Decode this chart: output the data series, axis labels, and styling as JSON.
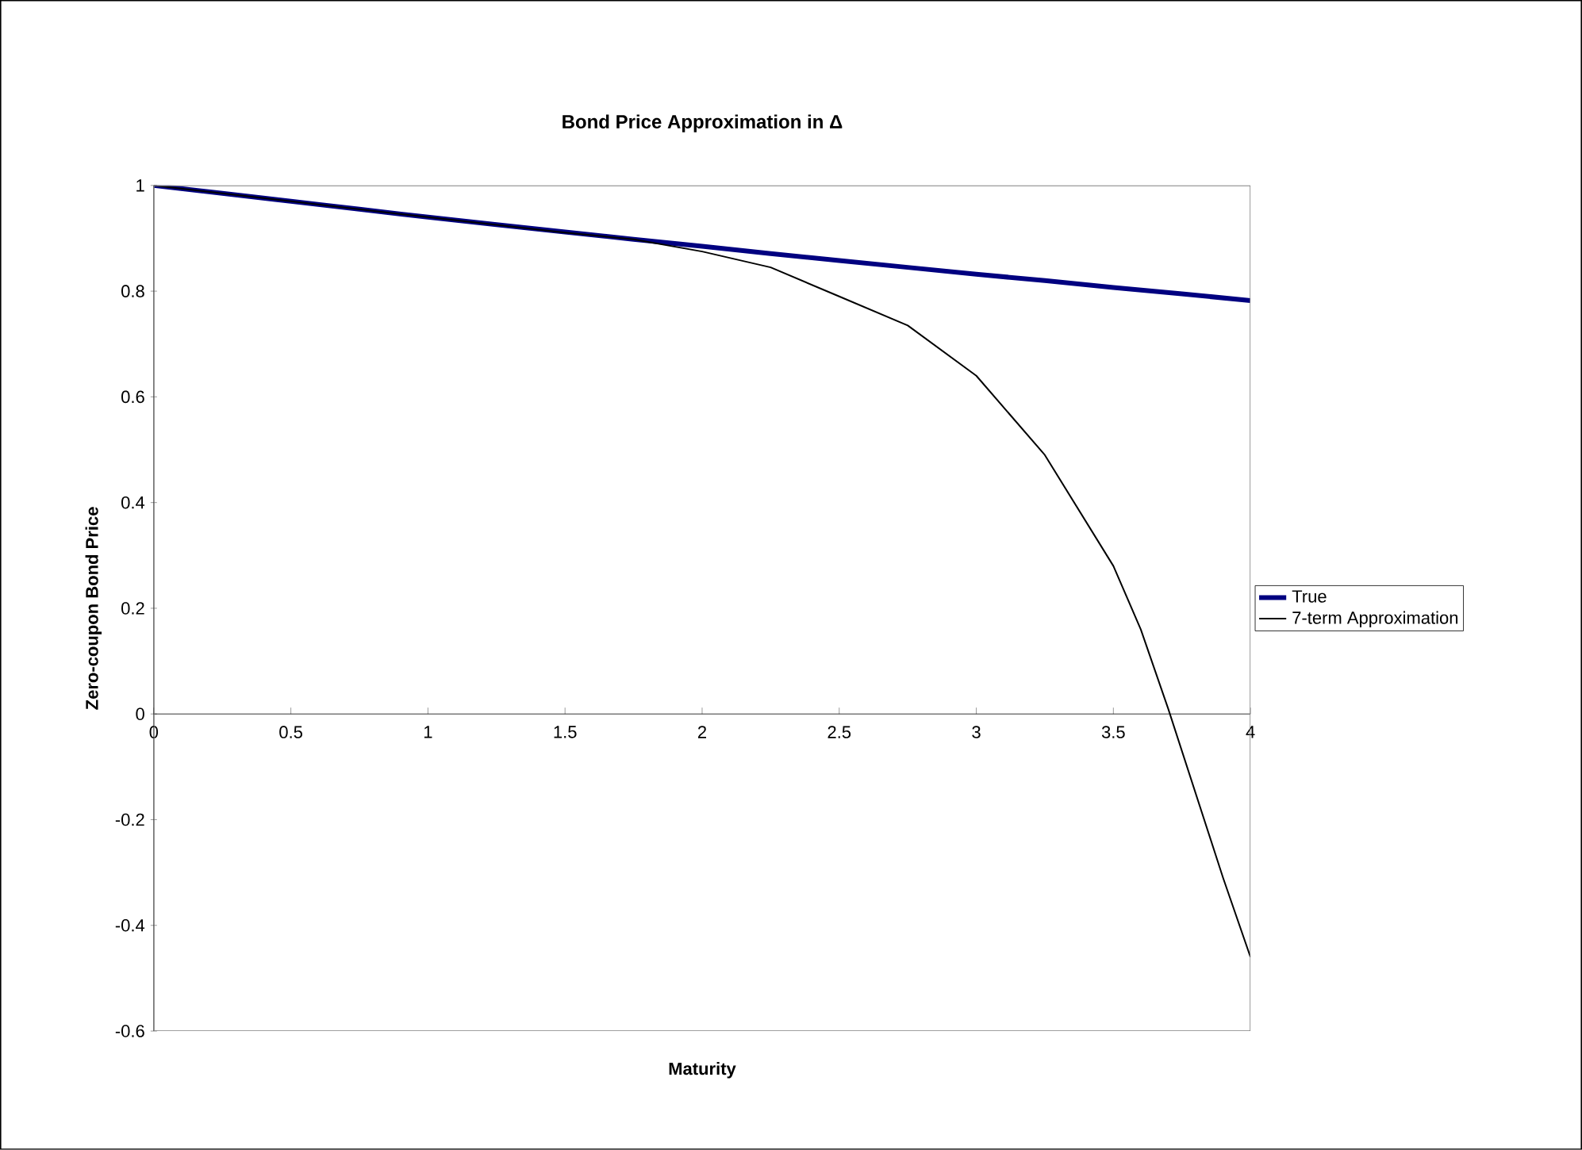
{
  "chart_data": {
    "type": "line",
    "title": "Bond Price Approximation in Δ",
    "xlabel": "Maturity",
    "ylabel": "Zero-coupon Bond Price",
    "xlim": [
      0,
      4
    ],
    "xticks": [
      0,
      0.5,
      1,
      1.5,
      2,
      2.5,
      3,
      3.5,
      4
    ],
    "ylim": [
      -0.6,
      1
    ],
    "yticks": [
      -0.6,
      -0.4,
      -0.2,
      0,
      0.2,
      0.4,
      0.6,
      0.8,
      1
    ],
    "grid": false,
    "legend": "right",
    "marker": "none",
    "series": [
      {
        "name": "True",
        "color": "#000080",
        "x": [
          0,
          0.25,
          0.5,
          0.75,
          1,
          1.25,
          1.5,
          1.75,
          2,
          2.25,
          2.5,
          2.75,
          3,
          3.25,
          3.5,
          3.75,
          4
        ],
        "values": [
          1,
          0.985,
          0.97,
          0.955,
          0.94,
          0.926,
          0.912,
          0.898,
          0.885,
          0.871,
          0.858,
          0.845,
          0.832,
          0.82,
          0.807,
          0.795,
          0.782
        ]
      },
      {
        "name": "7-term Approximation",
        "color": "#000000",
        "x": [
          0,
          0.5,
          1,
          1.5,
          1.75,
          2,
          2.25,
          2.5,
          2.75,
          3,
          3.25,
          3.5,
          3.6,
          3.7,
          3.8,
          3.9,
          4
        ],
        "values": [
          1,
          0.97,
          0.94,
          0.911,
          0.898,
          0.875,
          0.845,
          0.79,
          0.735,
          0.64,
          0.49,
          0.28,
          0.16,
          0.01,
          -0.15,
          -0.31,
          -0.46
        ]
      }
    ]
  }
}
